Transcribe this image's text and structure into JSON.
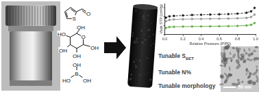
{
  "molecules": {
    "thiophene_carbaldehyde": {
      "atoms": [
        "S",
        "O"
      ]
    },
    "glucose": {
      "atoms": [
        "O",
        "OH",
        "OH",
        "OH",
        "OH",
        "HO"
      ]
    },
    "boric_acid": {
      "atoms": [
        "B",
        "OH",
        "HO",
        "OH"
      ]
    }
  },
  "features": [
    {
      "text": "Tunable S",
      "sub": "BET"
    },
    {
      "text": "Tunable N%"
    },
    {
      "text": "Tunable morphology"
    }
  ],
  "tem": {
    "scale_bar": "50 nm"
  },
  "chart_data": {
    "type": "line",
    "x_label": "Relative Pressure (P/P0)",
    "y_label": "Vads STP (cm³/g)",
    "x": [
      0.01,
      0.05,
      0.1,
      0.2,
      0.3,
      0.4,
      0.5,
      0.6,
      0.7,
      0.8,
      0.9,
      0.95,
      0.99
    ],
    "series": [
      {
        "color": "#222222",
        "line_style": "dashed",
        "marker": "circle",
        "values": [
          380,
          410,
          420,
          430,
          440,
          445,
          450,
          455,
          460,
          470,
          490,
          520,
          600
        ]
      },
      {
        "color": "#999999",
        "line_style": "solid",
        "marker": "circle",
        "values": [
          300,
          330,
          340,
          345,
          350,
          352,
          355,
          357,
          360,
          365,
          375,
          395,
          450
        ]
      },
      {
        "color": "#6ab04c",
        "line_style": "solid",
        "marker": "circle",
        "values": [
          150,
          170,
          175,
          180,
          182,
          184,
          186,
          188,
          190,
          195,
          205,
          220,
          260
        ]
      }
    ],
    "xlim": [
      0,
      1
    ],
    "xticks": [
      {
        "value": 0,
        "label": "0.0"
      },
      {
        "value": 0.2,
        "label": "0.2"
      },
      {
        "value": 0.4,
        "label": "0.4"
      },
      {
        "value": 0.6,
        "label": "0.6"
      },
      {
        "value": 0.8,
        "label": "0.8"
      },
      {
        "value": 1,
        "label": "1.0"
      }
    ],
    "ylim": [
      0,
      700
    ],
    "yticks": [
      0,
      200,
      400,
      600
    ],
    "grid": false,
    "tick_labels": "x"
  }
}
